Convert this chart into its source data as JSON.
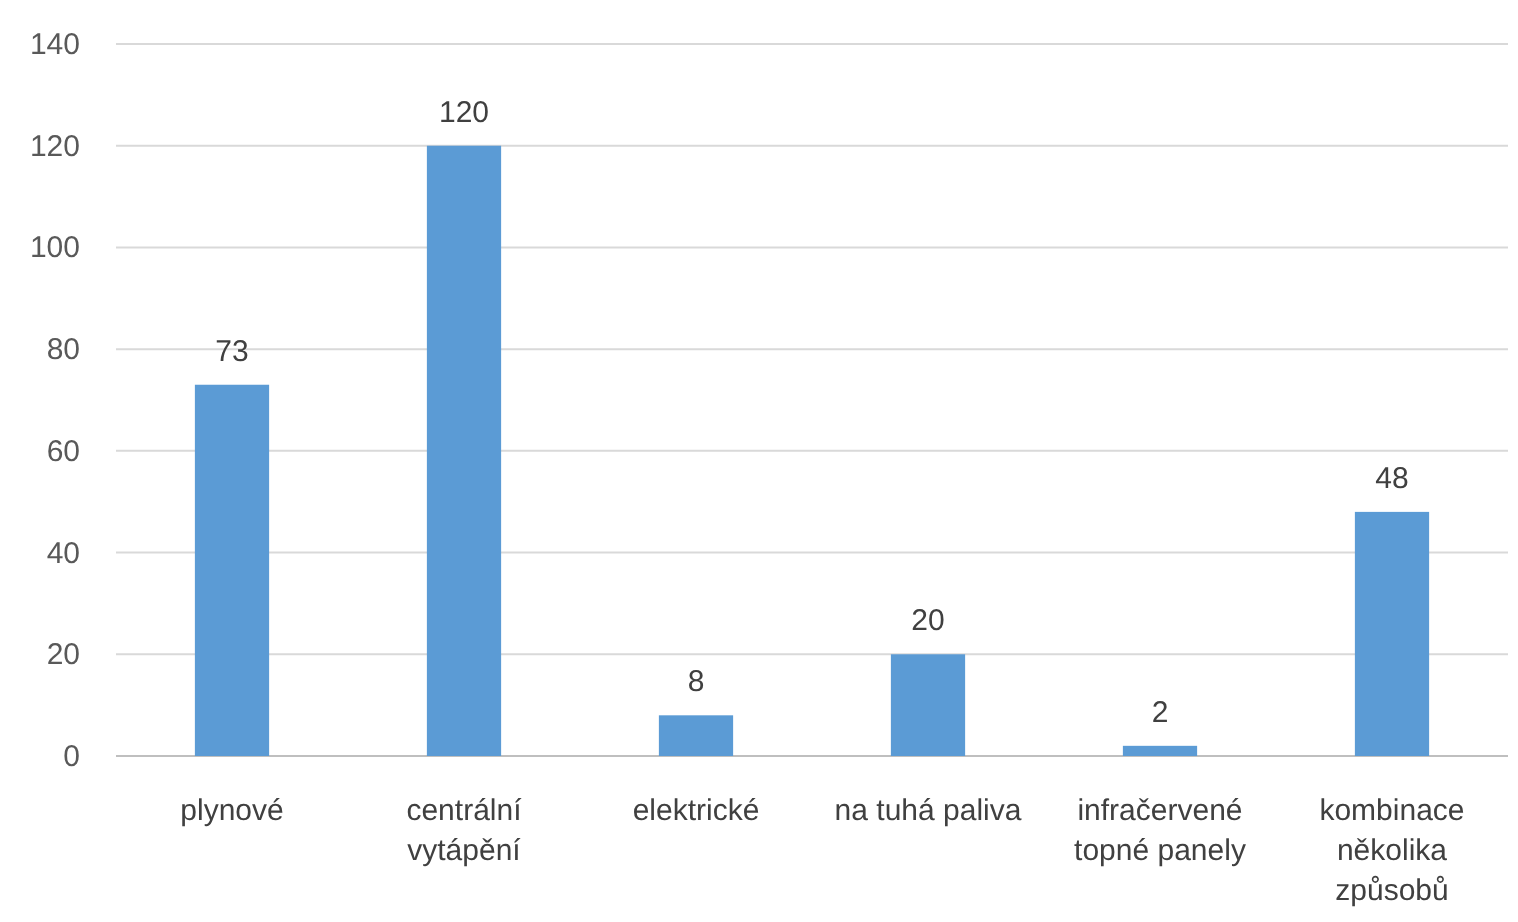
{
  "chart_data": {
    "type": "bar",
    "categories": [
      "plynové",
      "centrální vytápění",
      "elektrické",
      "na tuhá paliva",
      "infračervené topné panely",
      "kombinace několika způsobů"
    ],
    "values": [
      73,
      120,
      8,
      20,
      2,
      48
    ],
    "color": "#5b9bd5",
    "ylim": [
      0,
      140
    ],
    "yticks": [
      0,
      20,
      40,
      60,
      80,
      100,
      120,
      140
    ],
    "grid": "y",
    "data_labels": true
  }
}
